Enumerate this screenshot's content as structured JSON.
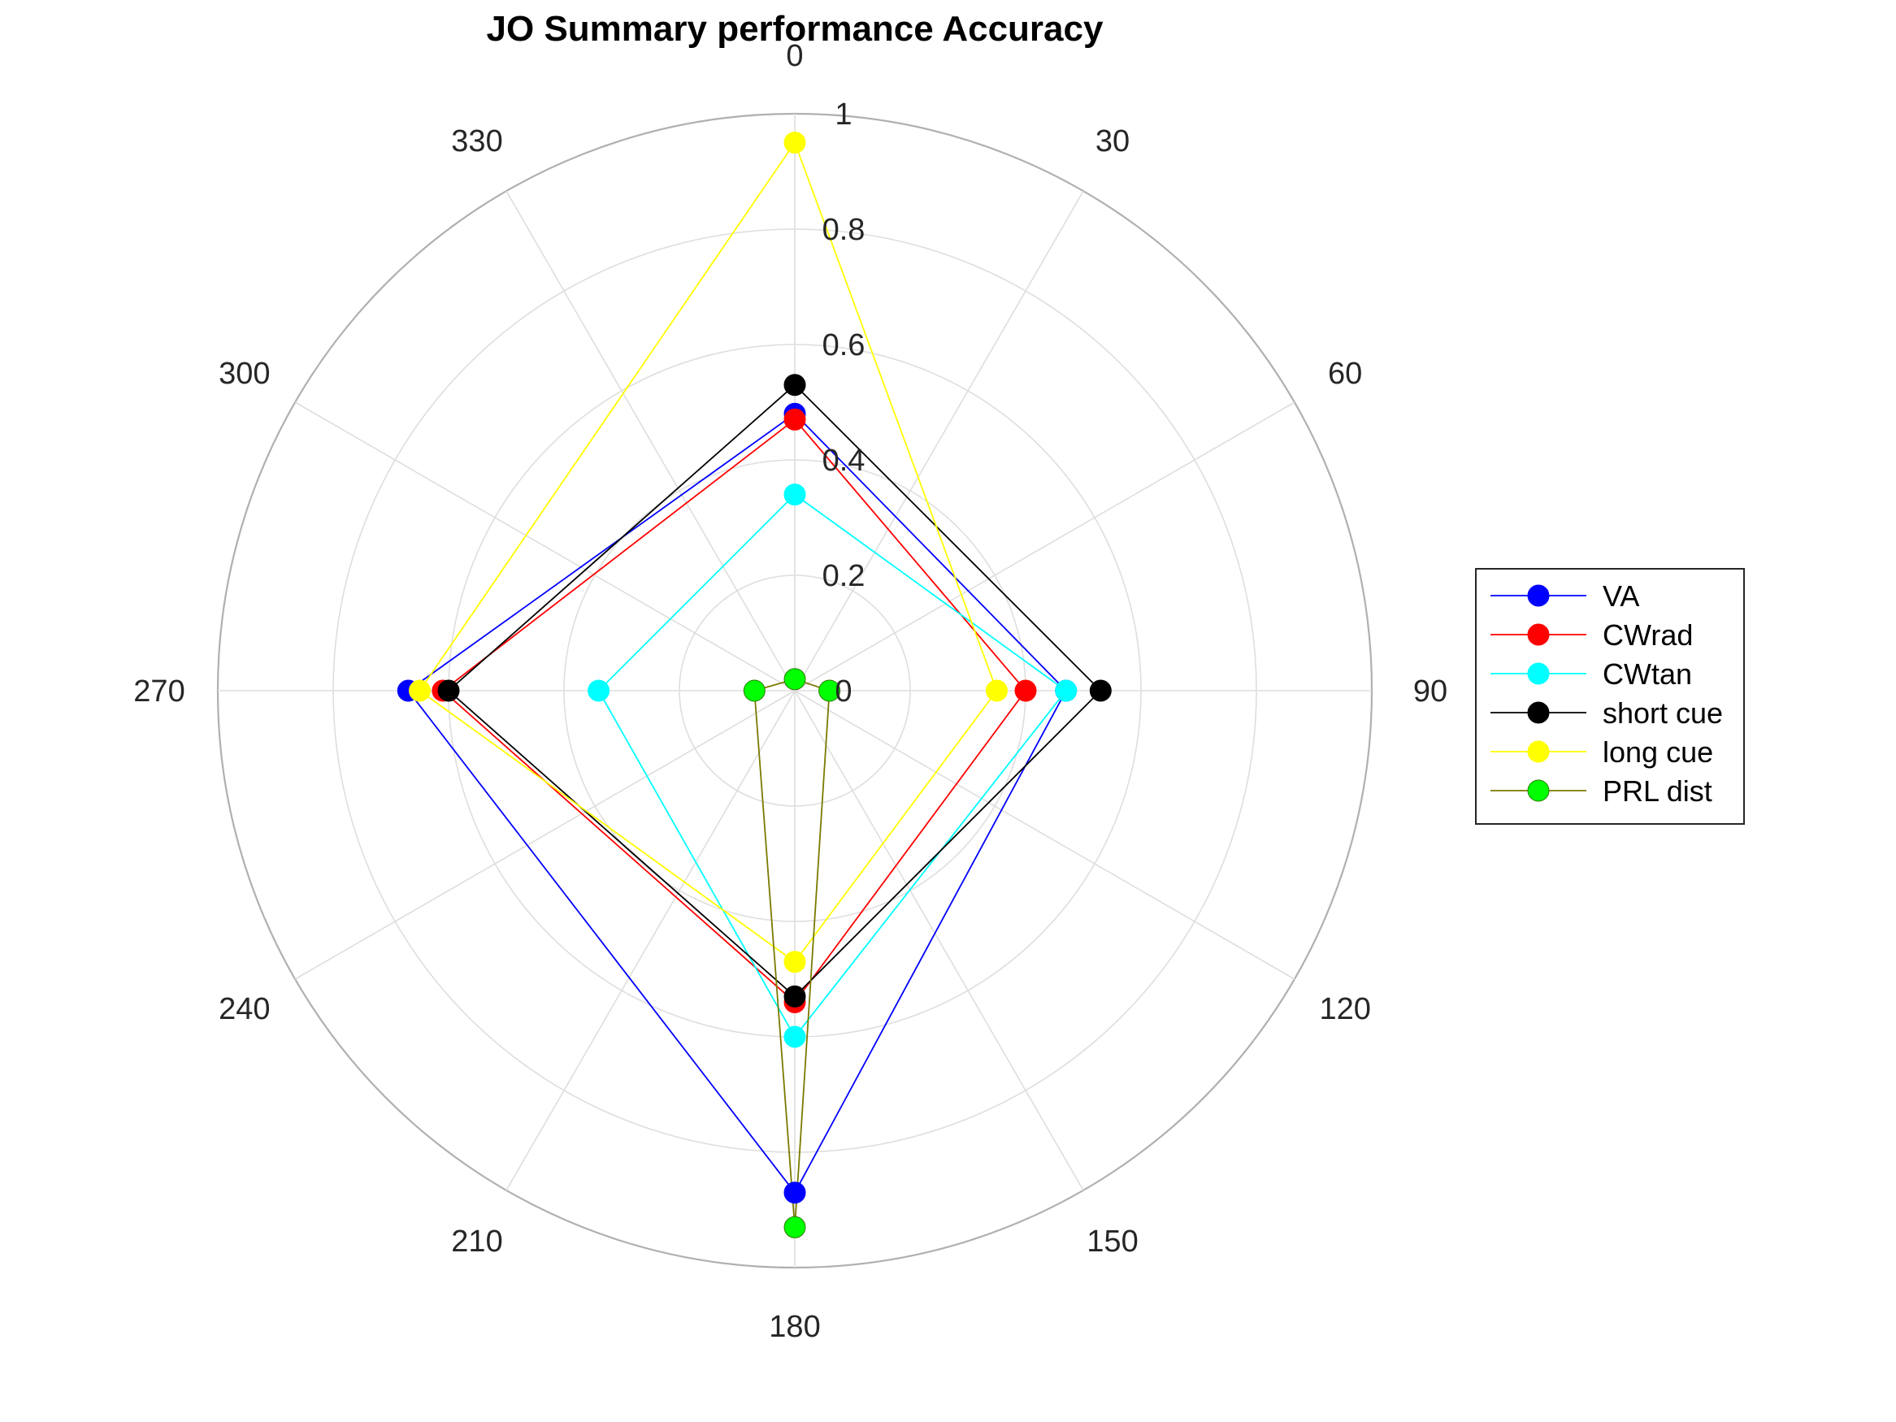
{
  "chart_data": {
    "type": "polar-line",
    "title": "JO Summary performance Accuracy",
    "theta_unit": "degrees",
    "theta_zero": "top",
    "theta_direction": "clockwise",
    "theta_ticks": [
      0,
      30,
      60,
      90,
      120,
      150,
      180,
      210,
      240,
      270,
      300,
      330
    ],
    "theta_tick_labels": [
      "0",
      "30",
      "60",
      "90",
      "120",
      "150",
      "180",
      "210",
      "240",
      "270",
      "300",
      "330"
    ],
    "r_ticks": [
      0,
      0.2,
      0.4,
      0.6,
      0.8,
      1
    ],
    "r_tick_labels": [
      "0",
      "0.2",
      "0.4",
      "0.6",
      "0.8",
      "1"
    ],
    "rlim": [
      0,
      1
    ],
    "grid": true,
    "legend_position": "right",
    "theta": [
      0,
      90,
      180,
      270
    ],
    "series": [
      {
        "name": "VA",
        "color": "#0000ff",
        "line_color": "#0000ff",
        "r": [
          0.48,
          0.47,
          0.87,
          0.67
        ]
      },
      {
        "name": "CWrad",
        "color": "#ff0000",
        "line_color": "#ff0000",
        "r": [
          0.47,
          0.4,
          0.54,
          0.61
        ]
      },
      {
        "name": "CWtan",
        "color": "#00ffff",
        "line_color": "#00ffff",
        "r": [
          0.34,
          0.47,
          0.6,
          0.34
        ]
      },
      {
        "name": "short cue",
        "color": "#000000",
        "line_color": "#000000",
        "r": [
          0.53,
          0.53,
          0.53,
          0.6
        ]
      },
      {
        "name": "long cue",
        "color": "#ffff00",
        "line_color": "#ffff00",
        "r": [
          0.95,
          0.35,
          0.47,
          0.65
        ]
      },
      {
        "name": "PRL dist",
        "color": "#00ff00",
        "line_color": "#7a7a00",
        "r": [
          0.02,
          0.06,
          0.93,
          0.07
        ]
      }
    ]
  }
}
